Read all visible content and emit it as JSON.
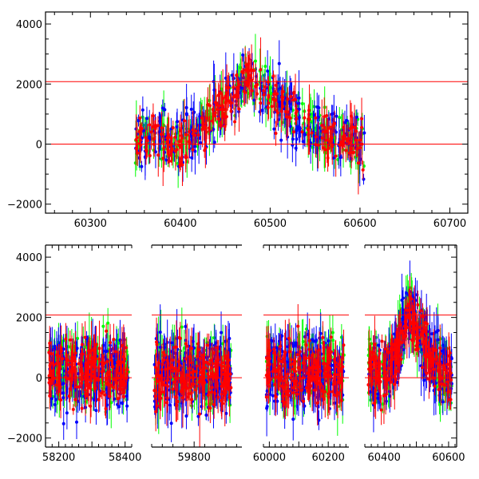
{
  "chart_data": [
    {
      "type": "scatter",
      "title": "",
      "xlabel": "",
      "ylabel": "",
      "xlim": [
        60250,
        60720
      ],
      "ylim": [
        -2300,
        4400
      ],
      "x_ticks": [
        "60300",
        "60400",
        "60500",
        "60600",
        "60700"
      ],
      "y_ticks": [
        "4000",
        "2000",
        "0",
        "−2000"
      ],
      "hlines": [
        0,
        2080
      ],
      "hline_color": "#ff0000",
      "error_bars": true,
      "data_coverage": [
        60350,
        60605
      ],
      "series_colors": [
        "#00ff00",
        "#0000ff",
        "#ff0000"
      ],
      "profile": [
        [
          60350,
          200
        ],
        [
          60380,
          150
        ],
        [
          60400,
          50
        ],
        [
          60420,
          400
        ],
        [
          60440,
          1000
        ],
        [
          60460,
          1700
        ],
        [
          60475,
          2400
        ],
        [
          60490,
          2000
        ],
        [
          60510,
          1400
        ],
        [
          60530,
          900
        ],
        [
          60550,
          500
        ],
        [
          60580,
          250
        ],
        [
          60605,
          -50
        ]
      ]
    },
    {
      "type": "scatter",
      "title": "",
      "xlabel": "",
      "ylabel": "",
      "ylim": [
        -2300,
        4400
      ],
      "y_ticks": [
        "4000",
        "2000",
        "0",
        "−2000"
      ],
      "hlines": [
        0,
        2080
      ],
      "hline_color": "#ff0000",
      "error_bars": true,
      "broken_x_axis": true,
      "series_colors": [
        "#00ff00",
        "#0000ff",
        "#ff0000"
      ],
      "segments": [
        {
          "xlim": [
            58160,
            58420
          ],
          "x_ticks": [
            "58200",
            "58400"
          ],
          "data_range": [
            58170,
            58410
          ],
          "profile": [
            [
              58170,
              200
            ],
            [
              58300,
              250
            ],
            [
              58410,
              200
            ]
          ]
        },
        {
          "xlim": [
            59720,
            59890
          ],
          "x_ticks": [
            "59800"
          ],
          "data_range": [
            59725,
            59870
          ],
          "profile": [
            [
              59725,
              100
            ],
            [
              59800,
              150
            ],
            [
              59870,
              100
            ]
          ]
        },
        {
          "xlim": [
            59980,
            60270
          ],
          "x_ticks": [
            "60000",
            "60200"
          ],
          "data_range": [
            59990,
            60255
          ],
          "profile": [
            [
              59990,
              150
            ],
            [
              60120,
              250
            ],
            [
              60255,
              200
            ]
          ]
        },
        {
          "xlim": [
            60340,
            60625
          ],
          "x_ticks": [
            "60400",
            "60600"
          ],
          "data_range": [
            60350,
            60610
          ],
          "profile": [
            [
              60350,
              200
            ],
            [
              60400,
              100
            ],
            [
              60440,
              900
            ],
            [
              60475,
              2300
            ],
            [
              60510,
              1400
            ],
            [
              60550,
              500
            ],
            [
              60610,
              0
            ]
          ]
        }
      ]
    }
  ]
}
